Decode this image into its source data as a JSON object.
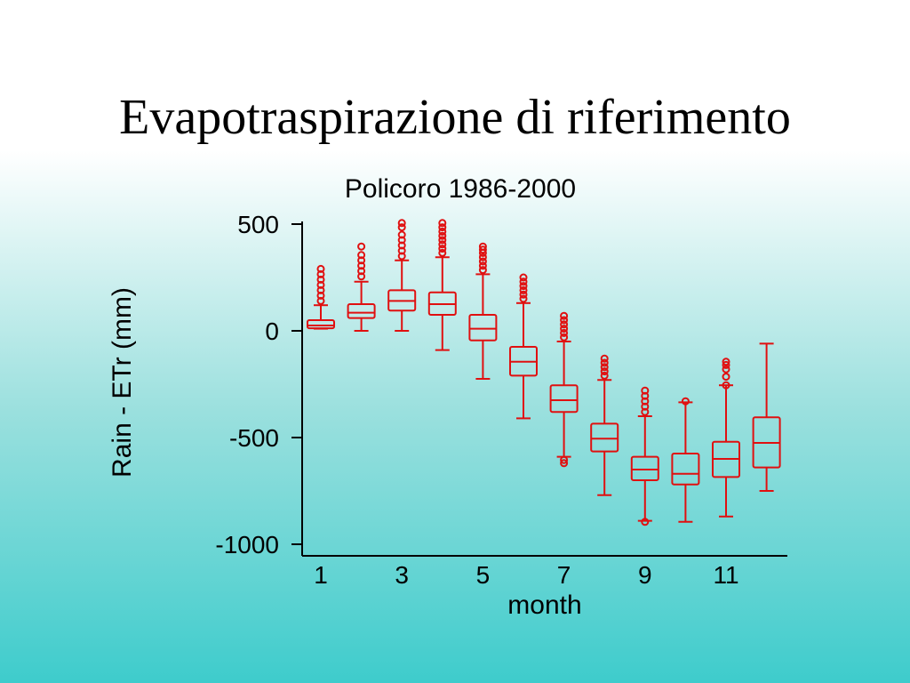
{
  "slide": {
    "title": "Evapotraspirazione di riferimento"
  },
  "chart_data": {
    "type": "box",
    "title": "Policoro 1986-2000",
    "xlabel": "month",
    "ylabel": "Rain - ETr (mm)",
    "ylim": [
      -1000,
      500
    ],
    "yticks": [
      500,
      0,
      -500,
      -1000
    ],
    "xticks": [
      1,
      3,
      5,
      7,
      9,
      11
    ],
    "color": "#e01010",
    "categories": [
      1,
      2,
      3,
      4,
      5,
      6,
      7,
      8,
      9,
      10,
      11,
      12
    ],
    "boxes": [
      {
        "month": 1,
        "whisker_low": 10,
        "q1": 12,
        "median": 25,
        "q3": 50,
        "whisker_high": 120,
        "outliers": [
          140,
          165,
          190,
          215,
          240,
          265,
          290
        ]
      },
      {
        "month": 2,
        "whisker_low": 0,
        "q1": 60,
        "median": 85,
        "q3": 125,
        "whisker_high": 230,
        "outliers": [
          255,
          280,
          305,
          330,
          355,
          395
        ]
      },
      {
        "month": 3,
        "whisker_low": 0,
        "q1": 95,
        "median": 140,
        "q3": 190,
        "whisker_high": 330,
        "outliers": [
          350,
          375,
          400,
          425,
          450,
          485,
          505
        ]
      },
      {
        "month": 4,
        "whisker_low": -90,
        "q1": 75,
        "median": 125,
        "q3": 180,
        "whisker_high": 345,
        "outliers": [
          365,
          385,
          405,
          425,
          445,
          465,
          485,
          505
        ]
      },
      {
        "month": 5,
        "whisker_low": -225,
        "q1": -45,
        "median": 10,
        "q3": 75,
        "whisker_high": 265,
        "outliers": [
          285,
          305,
          325,
          345,
          365,
          380,
          395
        ]
      },
      {
        "month": 6,
        "whisker_low": -410,
        "q1": -210,
        "median": -145,
        "q3": -75,
        "whisker_high": 130,
        "outliers": [
          150,
          170,
          190,
          210,
          230,
          250
        ]
      },
      {
        "month": 7,
        "whisker_low": -590,
        "q1": -380,
        "median": -325,
        "q3": -255,
        "whisker_high": -50,
        "outliers": [
          -605,
          -620,
          -30,
          -10,
          10,
          30,
          50,
          70
        ]
      },
      {
        "month": 8,
        "whisker_low": -770,
        "q1": -565,
        "median": -505,
        "q3": -435,
        "whisker_high": -230,
        "outliers": [
          -210,
          -190,
          -170,
          -150,
          -130
        ]
      },
      {
        "month": 9,
        "whisker_low": -890,
        "q1": -700,
        "median": -650,
        "q3": -590,
        "whisker_high": -400,
        "outliers": [
          -895,
          -380,
          -355,
          -330,
          -305,
          -280
        ]
      },
      {
        "month": 10,
        "whisker_low": -895,
        "q1": -720,
        "median": -670,
        "q3": -575,
        "whisker_high": -335,
        "outliers": [
          -330
        ]
      },
      {
        "month": 11,
        "whisker_low": -870,
        "q1": -685,
        "median": -600,
        "q3": -520,
        "whisker_high": -255,
        "outliers": [
          -255,
          -215,
          -180,
          -160,
          -145
        ]
      },
      {
        "month": 12,
        "whisker_low": -750,
        "q1": -640,
        "median": -525,
        "q3": -405,
        "whisker_high": -60,
        "outliers": []
      }
    ]
  }
}
